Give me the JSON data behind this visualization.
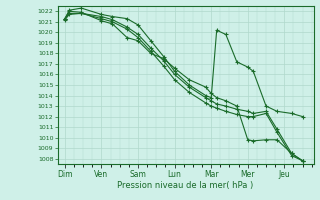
{
  "background_color": "#cff0e8",
  "grid_color": "#b0d8cc",
  "line_color": "#1a6b2a",
  "marker_color": "#1a6b2a",
  "xlabel": "Pression niveau de la mer( hPa )",
  "ylim": [
    1007.5,
    1022.5
  ],
  "yticks": [
    1008,
    1009,
    1010,
    1011,
    1012,
    1013,
    1014,
    1015,
    1016,
    1017,
    1018,
    1019,
    1020,
    1021,
    1022
  ],
  "x_labels": [
    "Dim",
    "Ven",
    "Sam",
    "Lun",
    "Mar",
    "Mer",
    "Jeu"
  ],
  "series_x": [
    0.0,
    0.12,
    0.45,
    1.0,
    1.3,
    1.7,
    2.0,
    2.35,
    2.7,
    3.0,
    3.4,
    3.85,
    4.0,
    4.15,
    4.4,
    4.7,
    5.0,
    5.15,
    5.5,
    5.8,
    6.2,
    6.5
  ],
  "series": [
    [
      1021.3,
      1022.0,
      1021.9,
      1021.1,
      1020.8,
      1019.5,
      1019.2,
      1018.0,
      1017.5,
      1016.6,
      1015.5,
      1014.8,
      1014.2,
      1013.8,
      1013.5,
      1013.0,
      1009.8,
      1009.7,
      1009.8,
      1009.8,
      1008.5,
      1007.8
    ],
    [
      1021.3,
      1022.1,
      1022.3,
      1021.7,
      1021.5,
      1021.3,
      1020.7,
      1019.2,
      1017.7,
      1016.3,
      1015.0,
      1014.0,
      1013.8,
      1020.2,
      1019.8,
      1017.2,
      1016.7,
      1016.3,
      1013.0,
      1012.5,
      1012.3,
      1012.0
    ],
    [
      1021.3,
      1021.8,
      1021.8,
      1021.5,
      1021.2,
      1020.5,
      1019.8,
      1018.5,
      1017.3,
      1016.0,
      1014.8,
      1013.8,
      1013.5,
      1013.2,
      1013.0,
      1012.7,
      1012.5,
      1012.3,
      1012.5,
      1010.8,
      1008.5,
      1007.8
    ],
    [
      1021.2,
      1021.7,
      1021.8,
      1021.3,
      1021.0,
      1020.3,
      1019.5,
      1018.2,
      1016.8,
      1015.5,
      1014.3,
      1013.3,
      1013.0,
      1012.8,
      1012.5,
      1012.2,
      1012.0,
      1012.0,
      1012.3,
      1010.5,
      1008.3,
      1007.8
    ]
  ],
  "xlim": [
    -0.2,
    6.8
  ],
  "x_tick_positions": [
    0,
    1,
    2,
    3,
    4,
    5,
    6
  ]
}
